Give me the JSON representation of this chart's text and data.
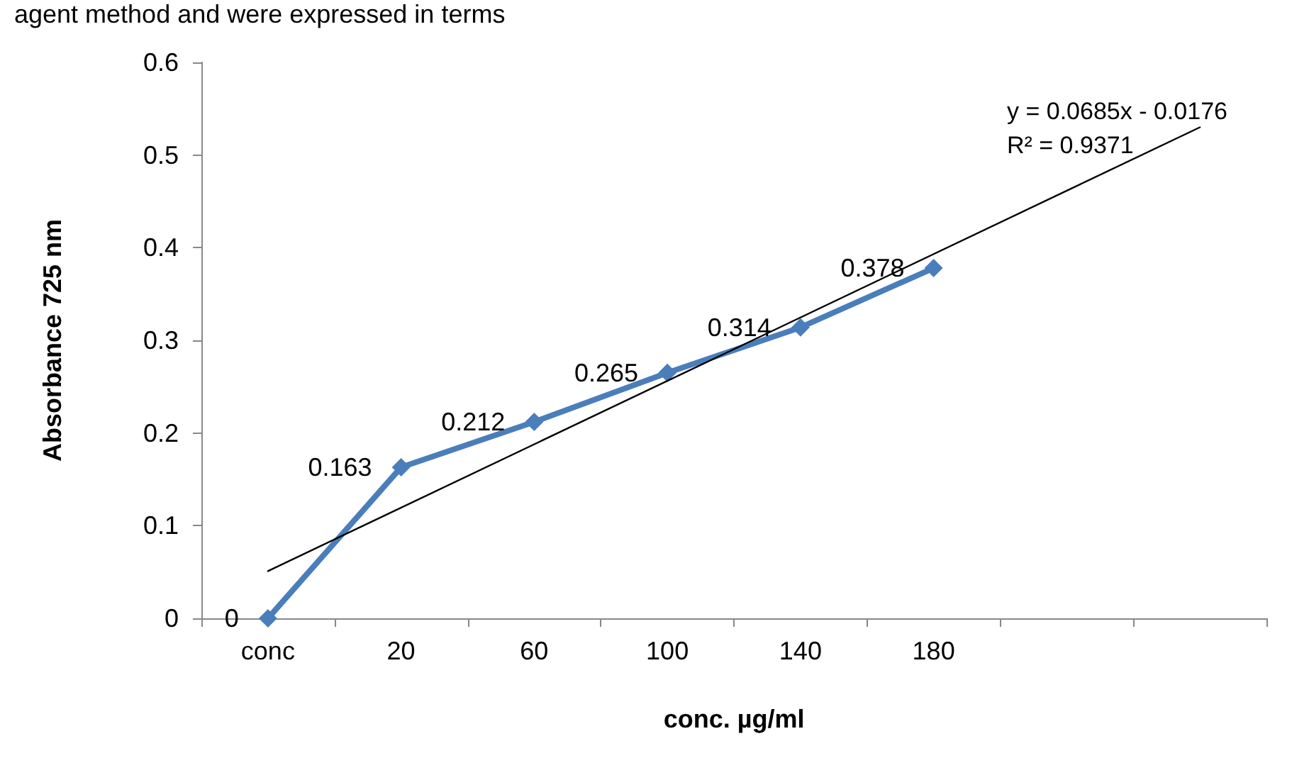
{
  "chart_data": {
    "type": "line",
    "xlabel": "conc. µg/ml",
    "ylabel": "Absorbance 725 nm",
    "annotations": [
      "agent method and were expressed in terms",
      "y = 0.0685x - 0.0176",
      "R² = 0.9371"
    ],
    "categories": [
      "conc",
      "20",
      "60",
      "100",
      "140",
      "180",
      null,
      null
    ],
    "series": [
      {
        "color": "#4a7ebb",
        "values": [
          0,
          0.163,
          0.212,
          0.265,
          0.314,
          0.378,
          null,
          null
        ],
        "marker": "diamond",
        "data_labels": true
      },
      {
        "color": "#000000",
        "values": [
          0.051,
          null,
          null,
          null,
          null,
          null,
          null,
          0.53
        ],
        "marker": "none"
      }
    ],
    "ylim": [
      0,
      0.6
    ],
    "yticks": [
      0,
      0.1,
      0.2,
      0.3,
      0.4,
      0.5,
      0.6
    ],
    "grid": false,
    "line_style": "solid"
  }
}
